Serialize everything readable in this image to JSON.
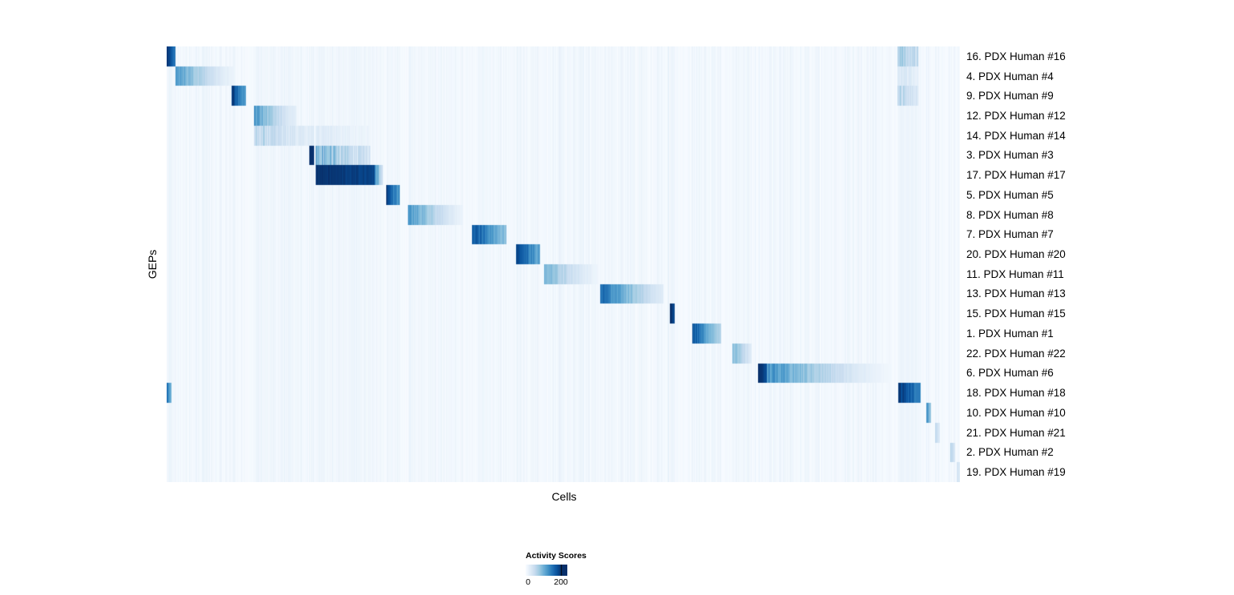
{
  "chart_data": {
    "type": "heatmap",
    "xlabel": "Cells",
    "ylabel": "GEPs",
    "value_range": [
      0,
      200
    ],
    "colormap": {
      "name": "Blues",
      "stops": [
        "#f7fbff",
        "#deebf7",
        "#c6dbef",
        "#9ecae1",
        "#6baed6",
        "#4292c6",
        "#2171b5",
        "#08519c",
        "#08306b"
      ]
    },
    "legend": {
      "title": "Activity Scores",
      "min": 0,
      "max": 200,
      "tick_labels": [
        "0",
        "200"
      ]
    },
    "rows": [
      {
        "label": "16. PDX Human #16",
        "segments": [
          {
            "start": 0.0,
            "end": 0.011,
            "v0": 200,
            "v1": 150,
            "noise": 0.1
          },
          {
            "start": 0.921,
            "end": 0.947,
            "v0": 70,
            "v1": 45,
            "noise": 0.6
          }
        ]
      },
      {
        "label": "4. PDX Human #4",
        "segments": [
          {
            "start": 0.011,
            "end": 0.085,
            "v0": 115,
            "v1": 12,
            "noise": 0.25
          },
          {
            "start": 0.921,
            "end": 0.947,
            "v0": 30,
            "v1": 20,
            "noise": 0.6
          }
        ]
      },
      {
        "label": "9. PDX Human #9",
        "segments": [
          {
            "start": 0.082,
            "end": 0.1,
            "v0": 195,
            "v1": 115,
            "noise": 0.15
          },
          {
            "start": 0.921,
            "end": 0.947,
            "v0": 60,
            "v1": 35,
            "noise": 0.6
          }
        ]
      },
      {
        "label": "12. PDX Human #12",
        "segments": [
          {
            "start": 0.11,
            "end": 0.164,
            "v0": 120,
            "v1": 18,
            "noise": 0.3
          }
        ]
      },
      {
        "label": "14. PDX Human #14",
        "segments": [
          {
            "start": 0.11,
            "end": 0.186,
            "v0": 60,
            "v1": 22,
            "noise": 0.7
          },
          {
            "start": 0.188,
            "end": 0.255,
            "v0": 25,
            "v1": 10,
            "noise": 0.7
          }
        ]
      },
      {
        "label": "3. PDX Human #3",
        "segments": [
          {
            "start": 0.18,
            "end": 0.186,
            "v0": 205,
            "v1": 195,
            "noise": 0.05
          },
          {
            "start": 0.188,
            "end": 0.257,
            "v0": 95,
            "v1": 35,
            "noise": 0.8
          }
        ]
      },
      {
        "label": "17. PDX Human #17",
        "segments": [
          {
            "start": 0.188,
            "end": 0.262,
            "v0": 200,
            "v1": 185,
            "noise": 0.06
          },
          {
            "start": 0.262,
            "end": 0.273,
            "v0": 150,
            "v1": 40,
            "noise": 0.3
          }
        ]
      },
      {
        "label": "5. PDX Human #5",
        "segments": [
          {
            "start": 0.277,
            "end": 0.294,
            "v0": 190,
            "v1": 120,
            "noise": 0.15
          }
        ]
      },
      {
        "label": "8. PDX Human #8",
        "segments": [
          {
            "start": 0.304,
            "end": 0.374,
            "v0": 120,
            "v1": 12,
            "noise": 0.25
          }
        ]
      },
      {
        "label": "7. PDX Human #7",
        "segments": [
          {
            "start": 0.385,
            "end": 0.428,
            "v0": 185,
            "v1": 85,
            "noise": 0.2
          }
        ]
      },
      {
        "label": "20. PDX Human #20",
        "segments": [
          {
            "start": 0.44,
            "end": 0.471,
            "v0": 195,
            "v1": 105,
            "noise": 0.2
          }
        ]
      },
      {
        "label": "11. PDX Human #11",
        "segments": [
          {
            "start": 0.476,
            "end": 0.544,
            "v0": 95,
            "v1": 10,
            "noise": 0.3
          }
        ]
      },
      {
        "label": "13. PDX Human #13",
        "segments": [
          {
            "start": 0.546,
            "end": 0.626,
            "v0": 160,
            "v1": 25,
            "noise": 0.25
          }
        ]
      },
      {
        "label": "15. PDX Human #15",
        "segments": [
          {
            "start": 0.634,
            "end": 0.64,
            "v0": 205,
            "v1": 185,
            "noise": 0.05
          }
        ]
      },
      {
        "label": "1. PDX Human #1",
        "segments": [
          {
            "start": 0.663,
            "end": 0.699,
            "v0": 175,
            "v1": 65,
            "noise": 0.2
          }
        ]
      },
      {
        "label": "22. PDX Human #22",
        "segments": [
          {
            "start": 0.713,
            "end": 0.737,
            "v0": 95,
            "v1": 28,
            "noise": 0.3
          }
        ]
      },
      {
        "label": "6. PDX Human #6",
        "segments": [
          {
            "start": 0.745,
            "end": 0.757,
            "v0": 205,
            "v1": 180,
            "noise": 0.05
          },
          {
            "start": 0.757,
            "end": 0.913,
            "v0": 125,
            "v1": 6,
            "noise": 0.3
          }
        ]
      },
      {
        "label": "18. PDX Human #18",
        "segments": [
          {
            "start": 0.0,
            "end": 0.006,
            "v0": 150,
            "v1": 100,
            "noise": 0.1
          },
          {
            "start": 0.922,
            "end": 0.951,
            "v0": 200,
            "v1": 135,
            "noise": 0.15
          }
        ]
      },
      {
        "label": "10. PDX Human #10",
        "segments": [
          {
            "start": 0.958,
            "end": 0.964,
            "v0": 130,
            "v1": 75,
            "noise": 0.2
          }
        ]
      },
      {
        "label": "21. PDX Human #21",
        "segments": [
          {
            "start": 0.969,
            "end": 0.975,
            "v0": 55,
            "v1": 30,
            "noise": 0.3
          }
        ]
      },
      {
        "label": "2. PDX Human #2",
        "segments": [
          {
            "start": 0.988,
            "end": 0.994,
            "v0": 60,
            "v1": 35,
            "noise": 0.3
          }
        ]
      },
      {
        "label": "19. PDX Human #19",
        "segments": [
          {
            "start": 0.996,
            "end": 1.0,
            "v0": 45,
            "v1": 25,
            "noise": 0.3
          }
        ]
      }
    ]
  }
}
